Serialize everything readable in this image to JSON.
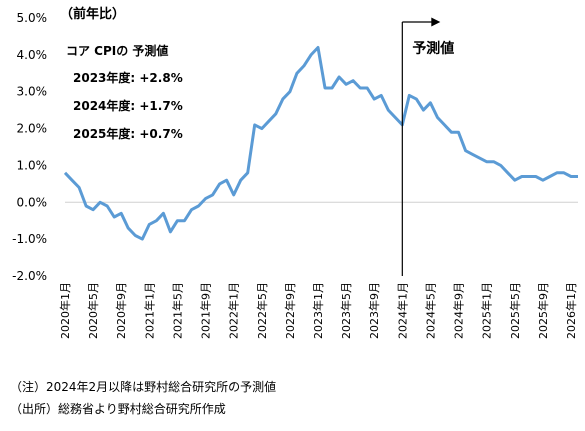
{
  "chart_data": {
    "type": "line",
    "unit_label": "（前年比）",
    "forecast_label": "予測値",
    "annotation": {
      "title": "コア CPIの 予測値",
      "lines": [
        "2023年度: +2.8%",
        "2024年度: +1.7%",
        "2025年度: +0.7%"
      ]
    },
    "ylim": [
      -2.0,
      5.0
    ],
    "yticks": [
      5.0,
      4.0,
      3.0,
      2.0,
      1.0,
      0.0,
      -1.0,
      -2.0
    ],
    "ytick_labels": [
      "5.0%",
      "4.0%",
      "3.0%",
      "2.0%",
      "1.0%",
      "0.0%",
      "-1.0%",
      "-2.0%"
    ],
    "xticks": [
      "2020年1月",
      "2020年5月",
      "2020年9月",
      "2021年1月",
      "2021年5月",
      "2021年9月",
      "2022年1月",
      "2022年5月",
      "2022年9月",
      "2023年1月",
      "2023年5月",
      "2023年9月",
      "2024年1月",
      "2024年5月",
      "2024年9月",
      "2025年1月",
      "2025年5月",
      "2025年9月",
      "2026年1月"
    ],
    "forecast_start": "2024年1月",
    "series": [
      {
        "color": "#5b9bd5",
        "values": [
          0.8,
          0.6,
          0.4,
          -0.1,
          -0.2,
          0.0,
          -0.1,
          -0.4,
          -0.3,
          -0.7,
          -0.9,
          -1.0,
          -0.6,
          -0.5,
          -0.3,
          -0.8,
          -0.5,
          -0.5,
          -0.2,
          -0.1,
          0.1,
          0.2,
          0.5,
          0.6,
          0.2,
          0.6,
          0.8,
          2.1,
          2.0,
          2.2,
          2.4,
          2.8,
          3.0,
          3.5,
          3.7,
          4.0,
          4.2,
          3.1,
          3.1,
          3.4,
          3.2,
          3.3,
          3.1,
          3.1,
          2.8,
          2.9,
          2.5,
          2.3,
          2.1,
          2.9,
          2.8,
          2.5,
          2.7,
          2.3,
          2.1,
          1.9,
          1.9,
          1.4,
          1.3,
          1.2,
          1.1,
          1.1,
          1.0,
          0.8,
          0.6,
          0.7,
          0.7,
          0.7,
          0.6,
          0.7,
          0.8,
          0.8,
          0.7,
          0.7
        ]
      }
    ]
  },
  "notes": [
    "（注）2024年2月以降は野村総合研究所の予測値",
    "（出所）総務省より野村総合研究所作成"
  ]
}
